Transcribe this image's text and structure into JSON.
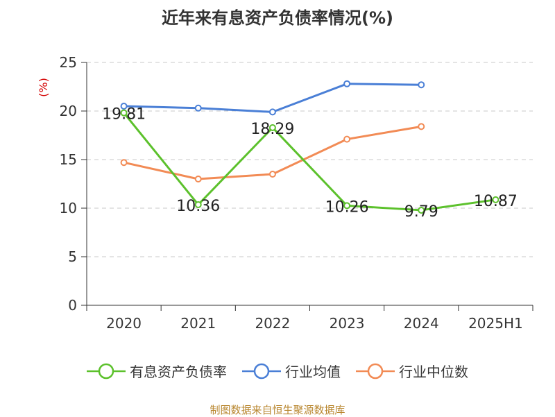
{
  "chart_data": {
    "type": "line",
    "title": "近年来有息资产负债率情况(%)",
    "ylabel": "(%)",
    "xlabel": "",
    "categories": [
      "2020",
      "2021",
      "2022",
      "2023",
      "2024",
      "2025H1"
    ],
    "ylim": [
      0,
      25
    ],
    "yticks": [
      0,
      5,
      10,
      15,
      20,
      25
    ],
    "grid": true,
    "legend_position": "bottom",
    "series": [
      {
        "name": "有息资产负债率",
        "color": "#5cc12c",
        "values": [
          19.81,
          10.36,
          18.29,
          10.26,
          9.79,
          10.87
        ],
        "show_labels": true
      },
      {
        "name": "行业均值",
        "color": "#4a7fd6",
        "values": [
          20.5,
          20.3,
          19.9,
          22.8,
          22.7,
          null
        ],
        "show_labels": false
      },
      {
        "name": "行业中位数",
        "color": "#f28b55",
        "values": [
          14.7,
          13.0,
          13.5,
          17.1,
          18.4,
          null
        ],
        "show_labels": false
      }
    ]
  },
  "source": "制图数据来自恒生聚源数据库"
}
